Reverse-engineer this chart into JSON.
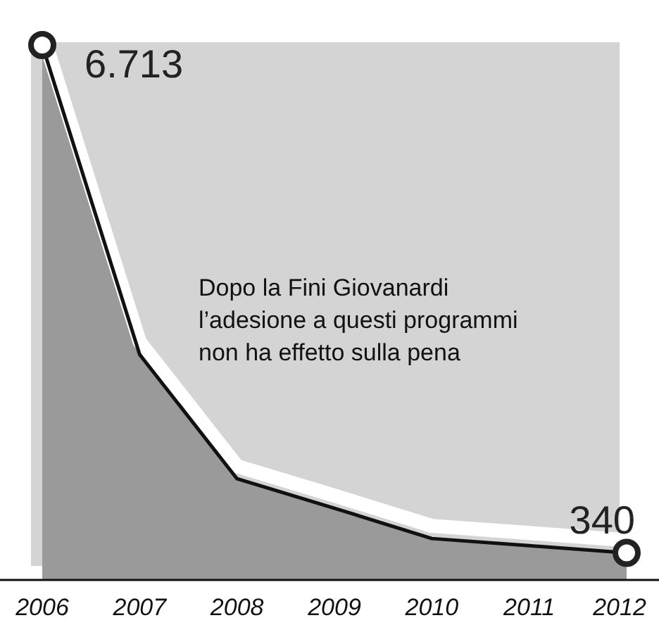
{
  "chart_data": {
    "type": "area",
    "categories": [
      "2006",
      "2007",
      "2008",
      "2009",
      "2010",
      "2011",
      "2012"
    ],
    "series": [
      {
        "color": "#9a9a9a",
        "values": [
          6713,
          2830,
          1270,
          900,
          520,
          430,
          340
        ],
        "value_labels": [
          "6.713",
          null,
          null,
          null,
          null,
          null,
          "340"
        ]
      }
    ],
    "annotations": [
      "Dopo la Fini Giovanardi\nl’adesione a questi programmi\nnon ha effetto sulla pena"
    ]
  }
}
